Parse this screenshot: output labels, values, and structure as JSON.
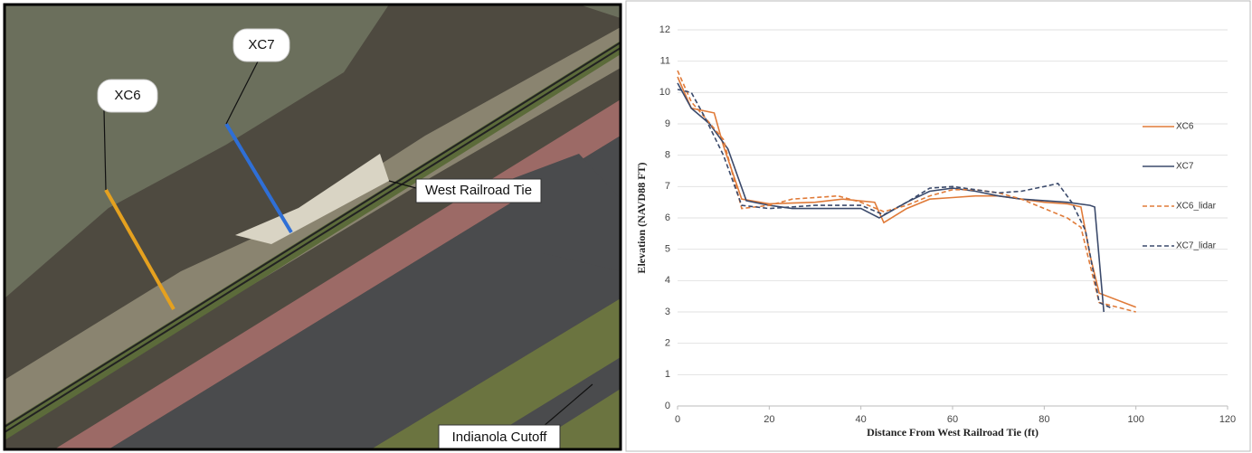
{
  "photo": {
    "labels": [
      "XC7",
      "XC6",
      "West Railroad Tie",
      "Indianola Cutoff"
    ]
  },
  "chart_data": {
    "type": "line",
    "xlabel": "Distance From West Railroad Tie (ft)",
    "ylabel": "Elevation (NAVD88 FT)",
    "xlim": [
      0,
      120
    ],
    "xticks": [
      0,
      20,
      40,
      60,
      80,
      100,
      120
    ],
    "ylim": [
      0,
      12
    ],
    "yticks": [
      0,
      1,
      2,
      3,
      4,
      5,
      6,
      7,
      8,
      9,
      10,
      11,
      12
    ],
    "grid": true,
    "legend": "right",
    "series": [
      {
        "name": "XC6",
        "color": "#e07b39",
        "dashed": false,
        "x": [
          0,
          3,
          8,
          10,
          14,
          20,
          30,
          36,
          43,
          45,
          50,
          55,
          60,
          65,
          70,
          75,
          80,
          85,
          88,
          90,
          92,
          100
        ],
        "values": [
          10.5,
          9.5,
          9.35,
          8.3,
          6.6,
          6.45,
          6.5,
          6.6,
          6.5,
          5.85,
          6.3,
          6.6,
          6.65,
          6.7,
          6.7,
          6.6,
          6.5,
          6.45,
          6.35,
          4.8,
          3.6,
          3.15
        ]
      },
      {
        "name": "XC7",
        "color": "#3b4a6b",
        "dashed": false,
        "x": [
          0,
          3,
          7,
          11,
          15,
          20,
          25,
          30,
          35,
          40,
          44,
          50,
          55,
          60,
          65,
          70,
          75,
          80,
          85,
          90,
          91,
          93
        ],
        "values": [
          10.3,
          9.5,
          9.0,
          8.2,
          6.55,
          6.4,
          6.3,
          6.3,
          6.3,
          6.3,
          6.0,
          6.5,
          6.85,
          6.95,
          6.85,
          6.7,
          6.6,
          6.55,
          6.5,
          6.4,
          6.35,
          3.0
        ]
      },
      {
        "name": "XC6_lidar",
        "color": "#e07b39",
        "dashed": true,
        "x": [
          0,
          3,
          6,
          10,
          14,
          20,
          25,
          30,
          35,
          40,
          45,
          50,
          55,
          60,
          65,
          70,
          75,
          80,
          85,
          88,
          90,
          92,
          100
        ],
        "values": [
          10.7,
          9.7,
          9.2,
          8.5,
          6.3,
          6.4,
          6.6,
          6.65,
          6.7,
          6.5,
          6.2,
          6.4,
          6.7,
          6.9,
          6.9,
          6.8,
          6.6,
          6.3,
          6.0,
          5.7,
          4.5,
          3.3,
          3.0
        ]
      },
      {
        "name": "XC7_lidar",
        "color": "#3b4a6b",
        "dashed": true,
        "x": [
          0,
          3,
          6,
          10,
          14,
          20,
          30,
          40,
          45,
          50,
          55,
          60,
          65,
          70,
          75,
          80,
          83,
          86,
          89,
          92,
          95
        ],
        "values": [
          10.1,
          10.0,
          9.2,
          8.0,
          6.4,
          6.3,
          6.4,
          6.4,
          6.1,
          6.5,
          6.95,
          7.0,
          6.9,
          6.8,
          6.85,
          7.0,
          7.1,
          6.5,
          5.6,
          3.3,
          3.1
        ]
      }
    ]
  }
}
